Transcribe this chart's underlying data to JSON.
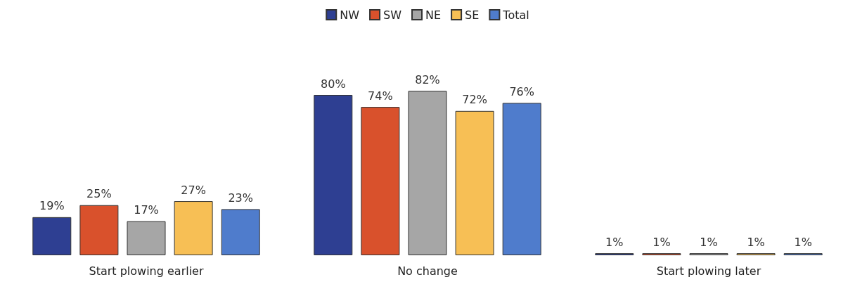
{
  "chart_data": {
    "type": "bar",
    "categories": [
      "Start plowing earlier",
      "No change",
      "Start plowing later"
    ],
    "series": [
      {
        "name": "NW",
        "color": "#2e3f92",
        "values": [
          19,
          80,
          1
        ],
        "value_labels": [
          "19%",
          "80%",
          "1%"
        ]
      },
      {
        "name": "SW",
        "color": "#d9512c",
        "values": [
          25,
          74,
          1
        ],
        "value_labels": [
          "25%",
          "74%",
          "1%"
        ]
      },
      {
        "name": "NE",
        "color": "#a6a6a6",
        "values": [
          17,
          82,
          1
        ],
        "value_labels": [
          "17%",
          "82%",
          "1%"
        ]
      },
      {
        "name": "SE",
        "color": "#f7bf55",
        "values": [
          27,
          72,
          1
        ],
        "value_labels": [
          "27%",
          "72%",
          "1%"
        ]
      },
      {
        "name": "Total",
        "color": "#4f7ccc",
        "values": [
          23,
          76,
          1
        ],
        "value_labels": [
          "23%",
          "76%",
          "1%"
        ]
      }
    ],
    "legend": "top"
  }
}
